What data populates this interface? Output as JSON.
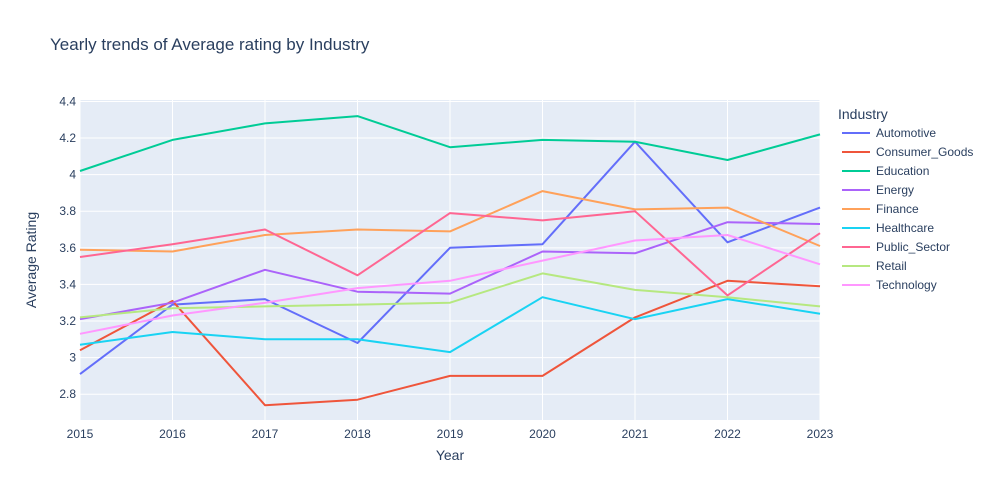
{
  "chart_data": {
    "type": "line",
    "title": "Yearly trends of Average rating by Industry",
    "xlabel": "Year",
    "ylabel": "Average Rating",
    "legend_title": "Industry",
    "legend_position": "right",
    "grid": true,
    "x": [
      2015,
      2016,
      2017,
      2018,
      2019,
      2020,
      2021,
      2022,
      2023
    ],
    "x_ticks": [
      "2015",
      "2016",
      "2017",
      "2018",
      "2019",
      "2020",
      "2021",
      "2022",
      "2023"
    ],
    "y_ticks": [
      {
        "value": 2.8,
        "label": "2.8"
      },
      {
        "value": 3.0,
        "label": "3"
      },
      {
        "value": 3.2,
        "label": "3.2"
      },
      {
        "value": 3.4,
        "label": "3.4"
      },
      {
        "value": 3.6,
        "label": "3.6"
      },
      {
        "value": 3.8,
        "label": "3.8"
      },
      {
        "value": 4.0,
        "label": "4"
      },
      {
        "value": 4.2,
        "label": "4.2"
      },
      {
        "value": 4.4,
        "label": "4.4"
      }
    ],
    "xlim": [
      2015,
      2023
    ],
    "ylim": [
      2.659,
      4.408
    ],
    "series": [
      {
        "name": "Automotive",
        "color": "#636efa",
        "values": [
          2.91,
          3.29,
          3.32,
          3.08,
          3.6,
          3.62,
          4.18,
          3.63,
          3.82
        ]
      },
      {
        "name": "Consumer_Goods",
        "color": "#EF553B",
        "values": [
          3.04,
          3.31,
          2.74,
          2.77,
          2.9,
          2.9,
          3.22,
          3.42,
          3.39
        ]
      },
      {
        "name": "Education",
        "color": "#00cc96",
        "values": [
          4.02,
          4.19,
          4.28,
          4.32,
          4.15,
          4.19,
          4.18,
          4.08,
          4.22
        ]
      },
      {
        "name": "Energy",
        "color": "#ab63fa",
        "values": [
          3.21,
          3.3,
          3.48,
          3.36,
          3.35,
          3.58,
          3.57,
          3.74,
          3.73
        ]
      },
      {
        "name": "Finance",
        "color": "#FFA15A",
        "values": [
          3.59,
          3.58,
          3.67,
          3.7,
          3.69,
          3.91,
          3.81,
          3.82,
          3.61
        ]
      },
      {
        "name": "Healthcare",
        "color": "#19d3f3",
        "values": [
          3.07,
          3.14,
          3.1,
          3.1,
          3.03,
          3.33,
          3.21,
          3.32,
          3.24
        ]
      },
      {
        "name": "Public_Sector",
        "color": "#FF6692",
        "values": [
          3.55,
          3.62,
          3.7,
          3.45,
          3.79,
          3.75,
          3.8,
          3.34,
          3.68
        ]
      },
      {
        "name": "Retail",
        "color": "#B6E880",
        "values": [
          3.22,
          3.27,
          3.28,
          3.29,
          3.3,
          3.46,
          3.37,
          3.33,
          3.28
        ]
      },
      {
        "name": "Technology",
        "color": "#FF97FF",
        "values": [
          3.13,
          3.23,
          3.3,
          3.38,
          3.42,
          3.53,
          3.64,
          3.67,
          3.51
        ]
      }
    ]
  }
}
